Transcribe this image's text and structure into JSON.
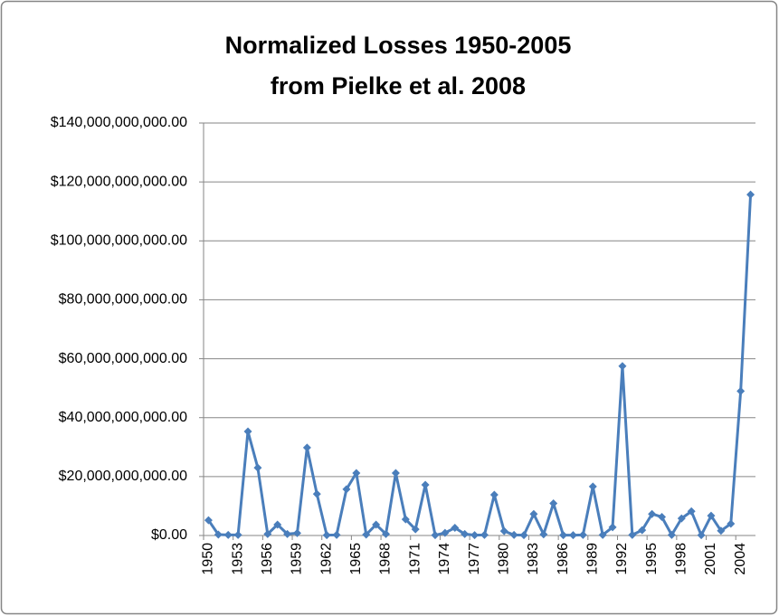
{
  "chart_data": {
    "type": "line",
    "title": [
      "Normalized Losses 1950-2005",
      "from Pielke et al. 2008"
    ],
    "categories": [
      "1950",
      null,
      null,
      "1953",
      null,
      null,
      "1956",
      null,
      null,
      "1959",
      null,
      null,
      "1962",
      null,
      null,
      "1965",
      null,
      null,
      "1968",
      null,
      null,
      "1971",
      null,
      null,
      "1974",
      null,
      null,
      "1977",
      null,
      null,
      "1980",
      null,
      null,
      "1983",
      null,
      null,
      "1986",
      null,
      null,
      "1989",
      null,
      null,
      "1992",
      null,
      null,
      "1995",
      null,
      null,
      "1998",
      null,
      null,
      "2001",
      null,
      null,
      "2004",
      null
    ],
    "series": [
      {
        "color": "#4a7ebb",
        "values": [
          5200000000,
          300000000,
          200000000,
          200000000,
          35300000000,
          23000000000,
          500000000,
          3700000000,
          500000000,
          800000000,
          29800000000,
          14100000000,
          100000000,
          200000000,
          15700000000,
          21200000000,
          300000000,
          3700000000,
          500000000,
          21200000000,
          5500000000,
          2100000000,
          17200000000,
          100000000,
          900000000,
          2600000000,
          500000000,
          100000000,
          200000000,
          13800000000,
          1500000000,
          200000000,
          100000000,
          7300000000,
          400000000,
          10900000000,
          100000000,
          100000000,
          200000000,
          16600000000,
          200000000,
          2800000000,
          57500000000,
          200000000,
          1800000000,
          7300000000,
          6300000000,
          200000000,
          5800000000,
          8200000000,
          100000000,
          6700000000,
          1600000000,
          4000000000,
          49000000000,
          115700000000
        ]
      }
    ],
    "ylim": [
      0,
      140000000000
    ],
    "yticks": [
      {
        "value": 0,
        "label": "$0.00"
      },
      {
        "value": 20000000000,
        "label": "$20,000,000,000.00"
      },
      {
        "value": 40000000000,
        "label": "$40,000,000,000.00"
      },
      {
        "value": 60000000000,
        "label": "$60,000,000,000.00"
      },
      {
        "value": 80000000000,
        "label": "$80,000,000,000.00"
      },
      {
        "value": 100000000000,
        "label": "$100,000,000,000.00"
      },
      {
        "value": 120000000000,
        "label": "$120,000,000,000.00"
      },
      {
        "value": 140000000000,
        "label": "$140,000,000,000.00"
      }
    ],
    "grid": true,
    "marker": "diamond"
  }
}
